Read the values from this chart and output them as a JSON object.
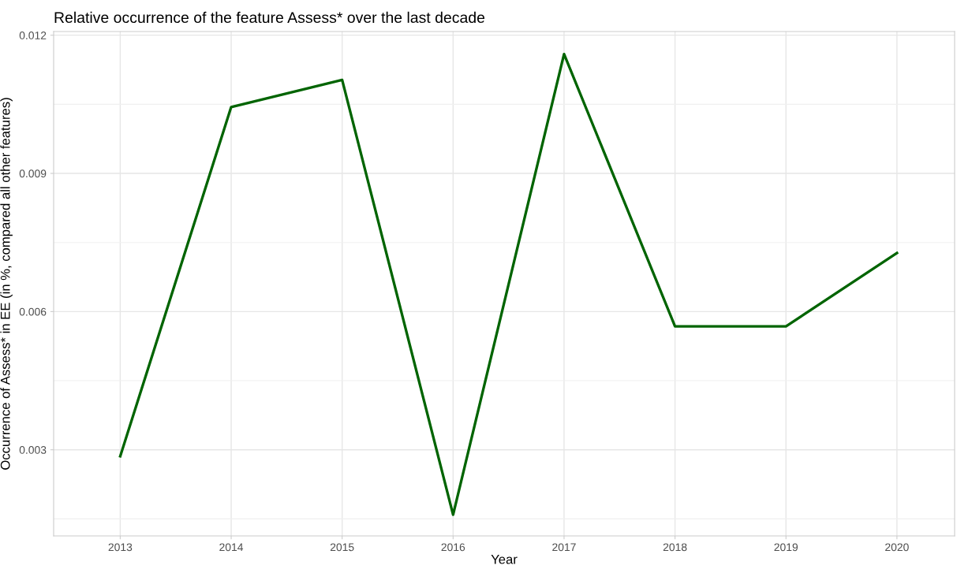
{
  "chart_data": {
    "type": "line",
    "title": "Relative occurrence of the feature Assess* over the last decade",
    "xlabel": "Year",
    "ylabel": "Occurrence of Assess* in EE (in %, compared all other features)",
    "x": [
      2013,
      2014,
      2015,
      2016,
      2017,
      2018,
      2019,
      2020
    ],
    "series": [
      {
        "color": "#006400",
        "values": [
          0.00286,
          0.01044,
          0.01103,
          0.00159,
          0.01159,
          0.00568,
          0.00568,
          0.00727
        ]
      }
    ],
    "xlim": [
      2012.4,
      2020.52
    ],
    "xticks": [
      2013,
      2014,
      2015,
      2016,
      2017,
      2018,
      2019,
      2020
    ],
    "ylim": [
      0.00113,
      0.01208
    ],
    "yticks": [
      0.003,
      0.006,
      0.009,
      0.012
    ],
    "grid": true,
    "marker": "none",
    "line_style": "solid"
  }
}
